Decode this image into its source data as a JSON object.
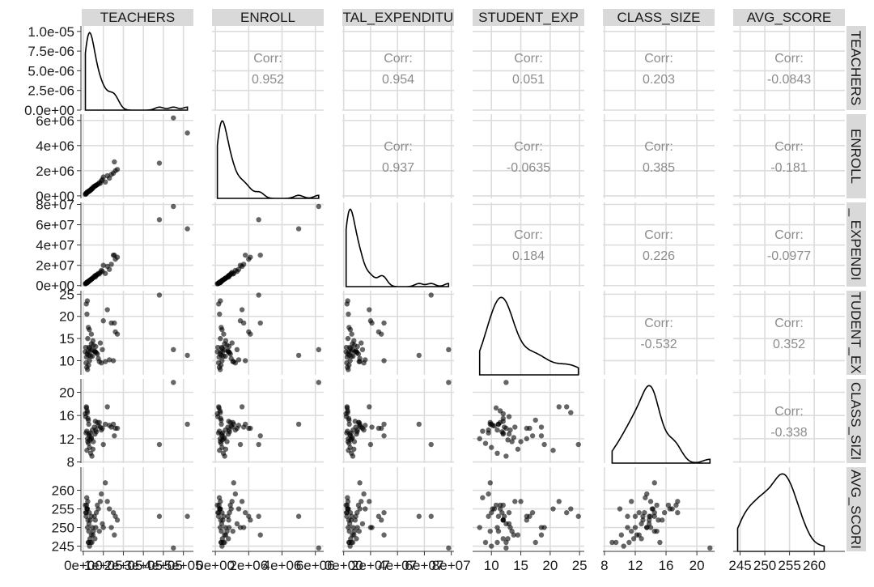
{
  "chart_data": {
    "type": "scatter-matrix",
    "variables": [
      "TEACHERS",
      "ENROLL",
      "TOTAL_EXPENDITURE",
      "STUDENT_EXP",
      "CLASS_SIZE",
      "AVG_SCORE"
    ],
    "column_strip_labels": [
      "TEACHERS",
      "ENROLL",
      "TAL_EXPENDITU",
      "STUDENT_EXP",
      "CLASS_SIZE",
      "AVG_SCORE"
    ],
    "row_strip_labels": [
      "TEACHERS",
      "ENROLL",
      "_ EXPENDI",
      "TUDENT_EX",
      "CLASS_SIZI",
      "AVG_SCORI"
    ],
    "corr_label": "Corr:",
    "correlations": [
      {
        "row": 0,
        "col": 1,
        "value": "0.952"
      },
      {
        "row": 0,
        "col": 2,
        "value": "0.954"
      },
      {
        "row": 0,
        "col": 3,
        "value": "0.051"
      },
      {
        "row": 0,
        "col": 4,
        "value": "0.203"
      },
      {
        "row": 0,
        "col": 5,
        "value": "-0.0843"
      },
      {
        "row": 1,
        "col": 2,
        "value": "0.937"
      },
      {
        "row": 1,
        "col": 3,
        "value": "-0.0635"
      },
      {
        "row": 1,
        "col": 4,
        "value": "0.385"
      },
      {
        "row": 1,
        "col": 5,
        "value": "-0.181"
      },
      {
        "row": 2,
        "col": 3,
        "value": "0.184"
      },
      {
        "row": 2,
        "col": 4,
        "value": "0.226"
      },
      {
        "row": 2,
        "col": 5,
        "value": "-0.0977"
      },
      {
        "row": 3,
        "col": 4,
        "value": "-0.532"
      },
      {
        "row": 3,
        "col": 5,
        "value": "0.352"
      },
      {
        "row": 4,
        "col": 5,
        "value": "-0.338"
      }
    ],
    "row_axes": [
      {
        "ticks": [
          0,
          2.5e-06,
          5e-06,
          7.5e-06,
          1e-05
        ],
        "tick_labels": [
          "0.0e+00",
          "2.5e-06",
          "5.0e-06",
          "7.5e-06",
          "1.0e-05"
        ],
        "range": [
          0,
          1.07e-05
        ]
      },
      {
        "ticks": [
          0,
          2000000.0,
          4000000.0,
          6000000.0
        ],
        "tick_labels": [
          "0e+00",
          "2e+06",
          "4e+06",
          "6e+06"
        ],
        "range": [
          -200000.0,
          6500000.0
        ]
      },
      {
        "ticks": [
          0,
          20000000.0,
          40000000.0,
          60000000.0,
          80000000.0
        ],
        "tick_labels": [
          "0e+00",
          "2e+07",
          "4e+07",
          "6e+07",
          "8e+07"
        ],
        "range": [
          -1000000.0,
          82000000.0
        ]
      },
      {
        "ticks": [
          10,
          15,
          20,
          25
        ],
        "tick_labels": [
          "10",
          "15",
          "20",
          "25"
        ],
        "range": [
          6.8,
          25.8
        ]
      },
      {
        "ticks": [
          8,
          12,
          16,
          20
        ],
        "tick_labels": [
          "8",
          "12",
          "16",
          "20"
        ],
        "range": [
          7.8,
          22.3
        ]
      },
      {
        "ticks": [
          245,
          250,
          255,
          260
        ],
        "tick_labels": [
          "245",
          "250",
          "255",
          "260"
        ],
        "range": [
          243.6,
          266.2
        ]
      }
    ],
    "col_axes": [
      {
        "ticks": [
          0,
          100000.0,
          200000.0,
          300000.0,
          400000.0,
          500000.0
        ],
        "tick_labels": [
          "0e+00",
          "1e+05",
          "2e+05",
          "3e+05",
          "4e+05",
          "5e+05"
        ],
        "range": [
          -8000.0,
          550000.0
        ]
      },
      {
        "ticks": [
          0,
          2000000.0,
          4000000.0,
          6000000.0
        ],
        "tick_labels": [
          "0e+00",
          "2e+06",
          "4e+06",
          "6e+06"
        ],
        "range": [
          -200000.0,
          6500000.0
        ]
      },
      {
        "ticks": [
          0,
          20000000.0,
          40000000.0,
          60000000.0,
          80000000.0
        ],
        "tick_labels": [
          "0e+00",
          "2e+07",
          "4e+07",
          "6e+07",
          "8e+07"
        ],
        "range": [
          -1000000.0,
          82000000.0
        ]
      },
      {
        "ticks": [
          10,
          15,
          20,
          25
        ],
        "tick_labels": [
          "10",
          "15",
          "20",
          "25"
        ],
        "range": [
          6.8,
          25.8
        ]
      },
      {
        "ticks": [
          8,
          12,
          16,
          20
        ],
        "tick_labels": [
          "8",
          "12",
          "16",
          "20"
        ],
        "range": [
          7.8,
          22.3
        ]
      },
      {
        "ticks": [
          245,
          250,
          255,
          260
        ],
        "tick_labels": [
          "245",
          "250",
          "255",
          "260"
        ],
        "range": [
          243.6,
          266.2
        ]
      }
    ],
    "observations": [
      [
        60000,
        800000,
        8500000,
        12.0,
        15.0,
        252
      ],
      [
        100000,
        1500000,
        20000000,
        19.0,
        11.0,
        250
      ],
      [
        450000,
        6200000,
        78000000,
        12.5,
        21.7,
        244.5
      ],
      [
        520000,
        5000000,
        56000000,
        11.2,
        14.5,
        253
      ],
      [
        380000,
        2600000,
        65000000,
        24.8,
        11.0,
        253
      ],
      [
        155000,
        2700000,
        30000000,
        18.5,
        12.5,
        248
      ],
      [
        170000,
        2100000,
        28000000,
        16.0,
        13.8,
        252
      ],
      [
        150000,
        1800000,
        30000000,
        10.0,
        14.5,
        254
      ],
      [
        90000,
        1200000,
        15000000,
        9.5,
        13.5,
        259
      ],
      [
        110000,
        1100000,
        12000000,
        9.8,
        14.5,
        262
      ],
      [
        130000,
        1400000,
        16000000,
        10.2,
        14.3,
        255
      ],
      [
        95000,
        1300000,
        14000000,
        12.5,
        13.8,
        251
      ],
      [
        85000,
        1000000,
        13000000,
        14.0,
        14.0,
        257
      ],
      [
        70000,
        900000,
        11000000,
        11.5,
        14.8,
        256
      ],
      [
        50000,
        700000,
        8000000,
        13.5,
        11.5,
        249
      ],
      [
        40000,
        500000,
        6000000,
        16.0,
        12.0,
        253
      ],
      [
        30000,
        400000,
        5000000,
        17.0,
        12.5,
        254
      ],
      [
        25000,
        350000,
        4000000,
        17.5,
        15.2,
        246
      ],
      [
        20000,
        300000,
        3000000,
        23.5,
        16.5,
        255
      ],
      [
        15000,
        200000,
        2500000,
        22.8,
        17.5,
        254
      ],
      [
        18000,
        250000,
        3500000,
        20.5,
        10.0,
        255
      ],
      [
        22000,
        300000,
        3200000,
        15.0,
        11.5,
        257
      ],
      [
        28000,
        380000,
        4500000,
        13.0,
        12.8,
        251
      ],
      [
        35000,
        450000,
        5500000,
        12.0,
        13.0,
        252
      ],
      [
        45000,
        600000,
        7000000,
        11.0,
        13.5,
        250
      ],
      [
        55000,
        750000,
        9000000,
        12.2,
        14.0,
        253
      ],
      [
        65000,
        850000,
        10000000,
        11.8,
        13.2,
        254
      ],
      [
        75000,
        950000,
        12000000,
        10.5,
        14.2,
        255
      ],
      [
        80000,
        1050000,
        11500000,
        9.8,
        14.8,
        249
      ],
      [
        40000,
        550000,
        6500000,
        13.8,
        12.2,
        248
      ],
      [
        33000,
        420000,
        5200000,
        12.8,
        11.8,
        247
      ],
      [
        27000,
        360000,
        4200000,
        11.2,
        14.5,
        249
      ],
      [
        23000,
        320000,
        3800000,
        12.0,
        15.5,
        252
      ],
      [
        19000,
        280000,
        3000000,
        11.5,
        16.8,
        255
      ],
      [
        16000,
        220000,
        2600000,
        10.8,
        17.3,
        256
      ],
      [
        14000,
        190000,
        2300000,
        9.5,
        13.0,
        253
      ],
      [
        17000,
        240000,
        2800000,
        8.5,
        13.3,
        258
      ],
      [
        21000,
        290000,
        3400000,
        8.0,
        12.0,
        250
      ],
      [
        26000,
        340000,
        4000000,
        9.0,
        11.2,
        246
      ],
      [
        31000,
        400000,
        4800000,
        10.0,
        10.5,
        245
      ],
      [
        37000,
        480000,
        5800000,
        11.0,
        9.5,
        246
      ],
      [
        43000,
        560000,
        6800000,
        12.5,
        9.0,
        246
      ],
      [
        48000,
        620000,
        7600000,
        14.5,
        10.2,
        248
      ],
      [
        58000,
        780000,
        9500000,
        12.0,
        12.8,
        247
      ],
      [
        62000,
        820000,
        10200000,
        13.2,
        13.5,
        250
      ],
      [
        120000,
        1600000,
        19000000,
        21.5,
        17.5,
        257
      ],
      [
        140000,
        1700000,
        21000000,
        18.5,
        14.0,
        250
      ],
      [
        160000,
        2000000,
        26000000,
        16.5,
        13.8,
        253
      ],
      [
        12000,
        150000,
        2000000,
        13.0,
        15.8,
        254
      ],
      [
        10000,
        120000,
        1800000,
        12.0,
        16.3,
        256
      ]
    ]
  }
}
